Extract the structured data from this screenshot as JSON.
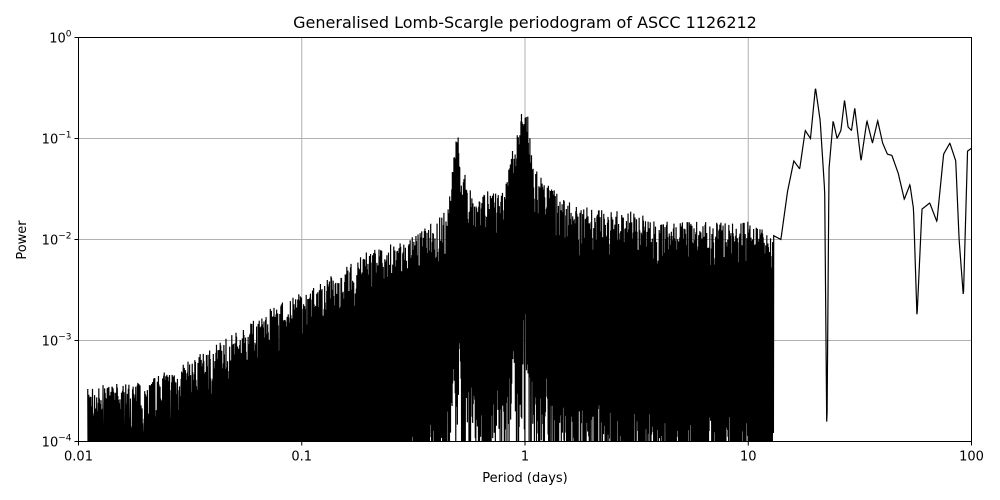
{
  "chart_data": {
    "type": "line",
    "title": "Generalised Lomb-Scargle periodogram of ASCC 1126212",
    "xlabel": "Period (days)",
    "ylabel": "Power",
    "xscale": "log",
    "yscale": "log",
    "xlim": [
      0.01,
      100
    ],
    "ylim": [
      0.0001,
      1
    ],
    "grid": true,
    "line_color": "#000000",
    "grid_color": "#b0b0b0",
    "xticks": [
      {
        "value": 0.01,
        "label": "0.01"
      },
      {
        "value": 0.1,
        "label": "0.1"
      },
      {
        "value": 1,
        "label": "1"
      },
      {
        "value": 10,
        "label": "10"
      },
      {
        "value": 100,
        "label": "100"
      }
    ],
    "yticks": [
      {
        "value": 0.0001,
        "base": "10",
        "exp": "−4"
      },
      {
        "value": 0.001,
        "base": "10",
        "exp": "−3"
      },
      {
        "value": 0.01,
        "base": "10",
        "exp": "−2"
      },
      {
        "value": 0.1,
        "base": "10",
        "exp": "−1"
      },
      {
        "value": 1,
        "base": "10",
        "exp": "0"
      }
    ],
    "series": [
      {
        "x": [
          0.011,
          0.02,
          0.03,
          0.05,
          0.07,
          0.1,
          0.15,
          0.2,
          0.3,
          0.45,
          0.5,
          0.52,
          0.6,
          0.8,
          0.98,
          1.0,
          1.02,
          1.1,
          1.5,
          2.0,
          3.0,
          4.0,
          6.0,
          8.0,
          10.0,
          12.0,
          14.0,
          15.0,
          16.0,
          17.0,
          18.0,
          19.0,
          20.0,
          21.0,
          22.0,
          22.5,
          23.0,
          24.0,
          25.0,
          26.0,
          27.0,
          28.0,
          29.0,
          30.0,
          32.0,
          34.0,
          36.0,
          38.0,
          40.0,
          42.0,
          44.0,
          47.0,
          50.0,
          53.0,
          55.0,
          57.0,
          60.0,
          65.0,
          70.0,
          75.0,
          80.0,
          85.0,
          88.0,
          92.0,
          96.0,
          100.0
        ],
        "y": [
          0.00035,
          0.0004,
          0.0006,
          0.0012,
          0.002,
          0.003,
          0.005,
          0.008,
          0.01,
          0.02,
          0.14,
          0.05,
          0.03,
          0.03,
          0.22,
          0.24,
          0.2,
          0.05,
          0.025,
          0.02,
          0.02,
          0.015,
          0.015,
          0.015,
          0.015,
          0.012,
          0.01,
          0.03,
          0.06,
          0.05,
          0.12,
          0.1,
          0.32,
          0.15,
          0.03,
          0.0001,
          0.05,
          0.15,
          0.1,
          0.12,
          0.24,
          0.13,
          0.12,
          0.2,
          0.06,
          0.15,
          0.09,
          0.15,
          0.09,
          0.07,
          0.068,
          0.045,
          0.025,
          0.035,
          0.02,
          0.0017,
          0.02,
          0.023,
          0.015,
          0.07,
          0.09,
          0.06,
          0.01,
          0.0027,
          0.075,
          0.08
        ]
      }
    ]
  }
}
